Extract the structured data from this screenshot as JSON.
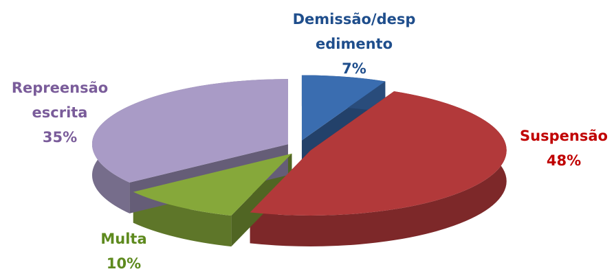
{
  "chart_data": {
    "type": "pie",
    "categories": [
      "Demissão/despedimento",
      "Suspensão",
      "Multa",
      "Repreensão escrita"
    ],
    "values": [
      7,
      48,
      10,
      35
    ],
    "value_labels": [
      "7%",
      "48%",
      "10%",
      "35%"
    ],
    "colors": [
      "#3a6db0",
      "#b2393a",
      "#86a83a",
      "#a99bc6"
    ],
    "label_colors": [
      "#1f4e8c",
      "#c00000",
      "#5e8a1e",
      "#7a5c9a"
    ]
  }
}
